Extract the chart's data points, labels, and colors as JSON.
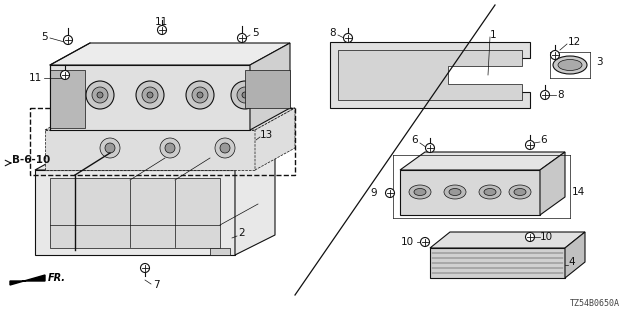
{
  "bg_color": "#ffffff",
  "lc": "#333333",
  "lc_dark": "#111111",
  "title_code": "TZ54B0650A",
  "fig_w": 6.4,
  "fig_h": 3.2,
  "dpi": 100,
  "xlim": [
    0,
    640
  ],
  "ylim": [
    0,
    320
  ]
}
